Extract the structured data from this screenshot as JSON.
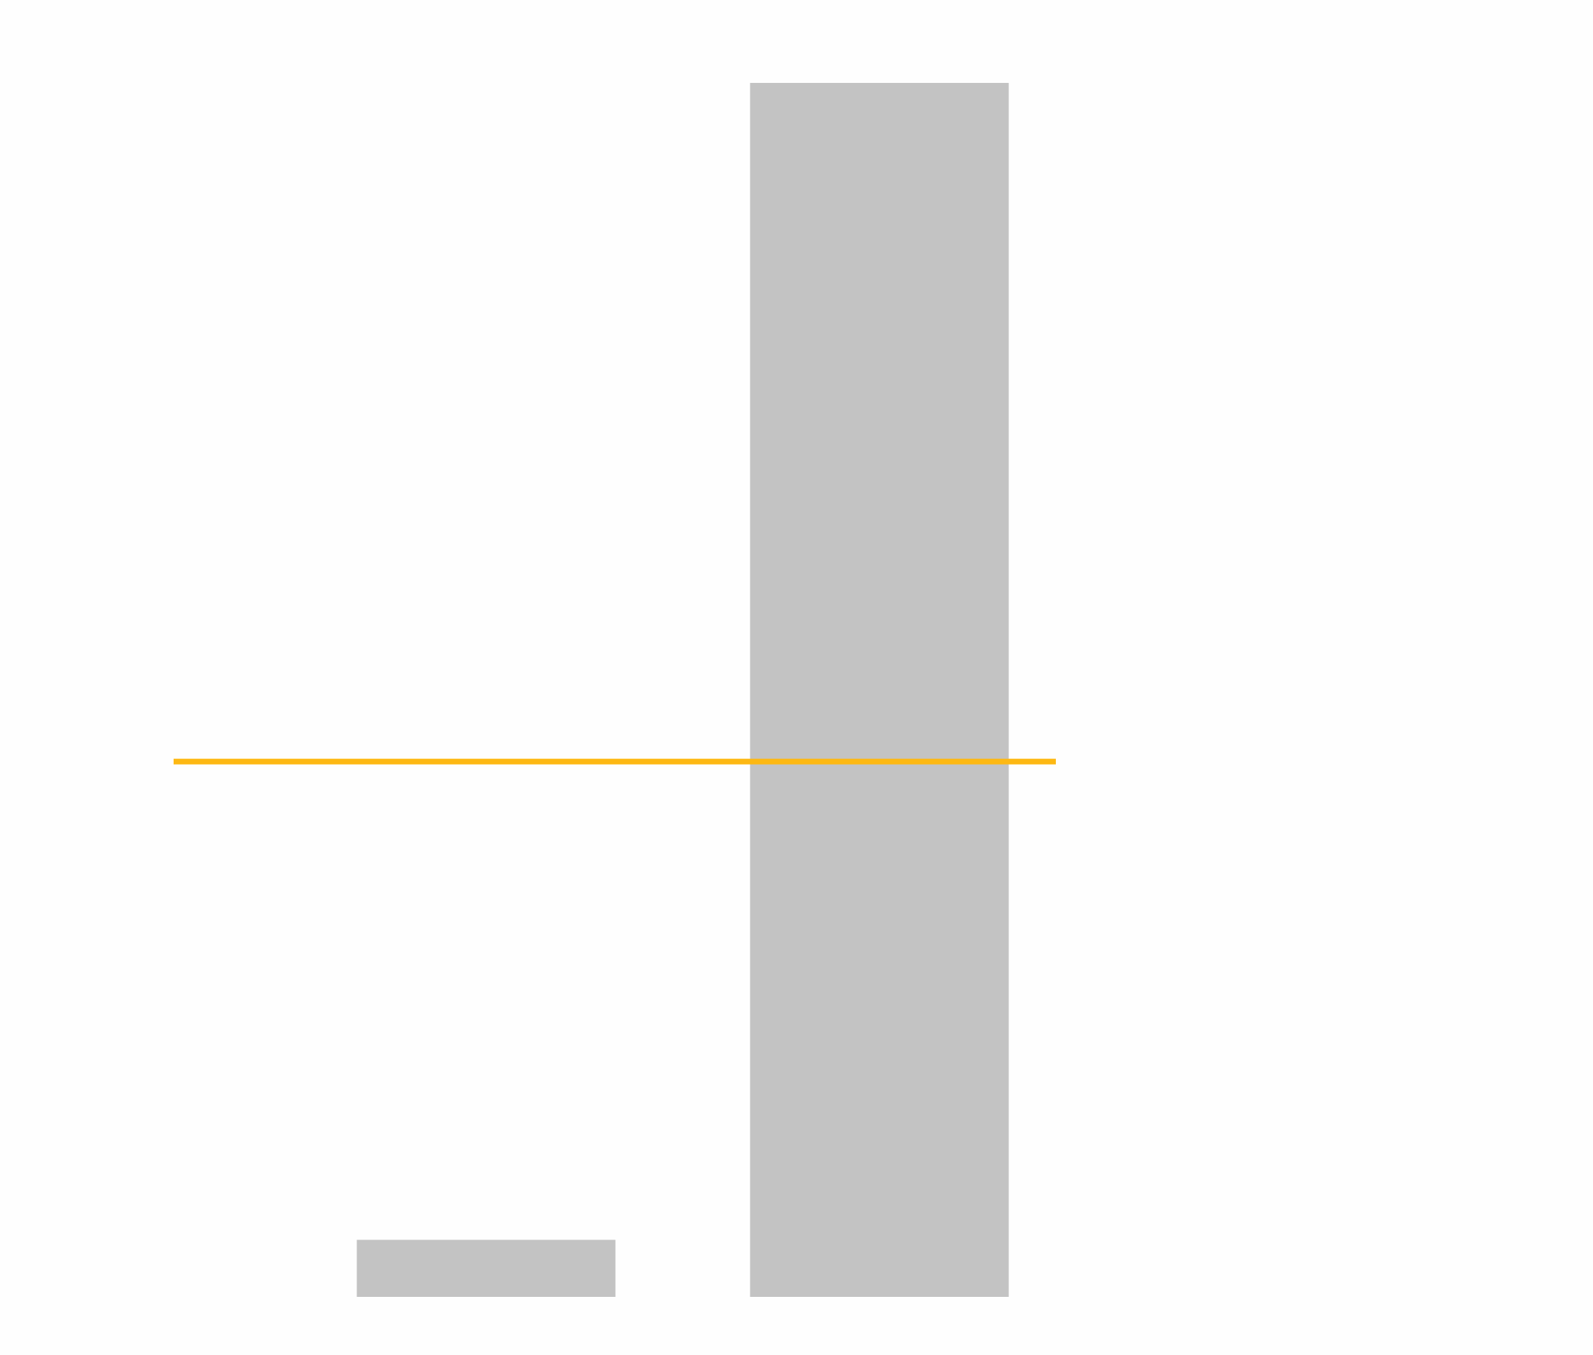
{
  "chart_data": {
    "type": "bar",
    "categories": [
      "",
      ""
    ],
    "values": [
      4.7,
      100
    ],
    "ylim": [
      0,
      100
    ],
    "reference_line": {
      "value": 44.1
    },
    "grid": false,
    "legend": "none",
    "colors": {
      "bar": "#c3c3c3",
      "reference_line": "#fdb813",
      "background": "#fefefe"
    }
  }
}
